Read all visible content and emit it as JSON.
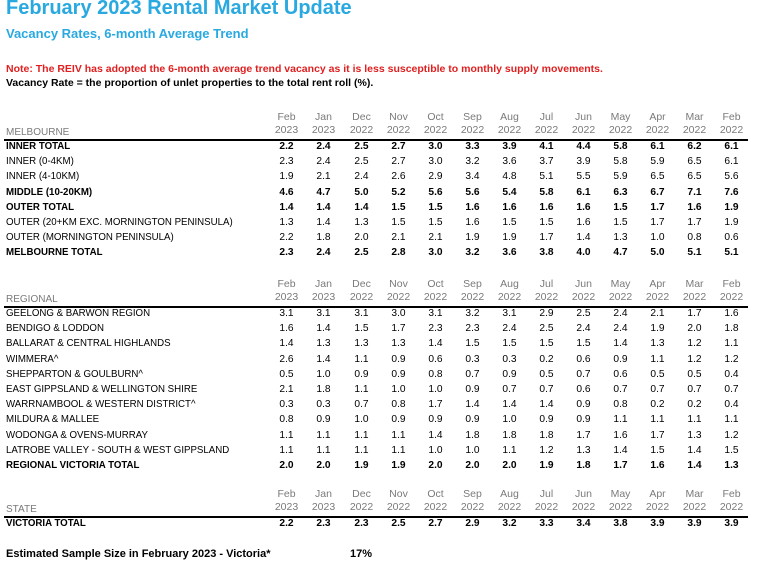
{
  "title": "February 2023 Rental Market Update",
  "subtitle": "Vacancy Rates, 6-month Average Trend",
  "note": "Note: The REIV has adopted the 6-month average trend vacancy as it is less susceptible to monthly supply movements.",
  "definition": "Vacancy Rate = the proportion of unlet properties to the total rent roll (%).",
  "months": [
    {
      "m": "Feb",
      "y": "2023"
    },
    {
      "m": "Jan",
      "y": "2023"
    },
    {
      "m": "Dec",
      "y": "2022"
    },
    {
      "m": "Nov",
      "y": "2022"
    },
    {
      "m": "Oct",
      "y": "2022"
    },
    {
      "m": "Sep",
      "y": "2022"
    },
    {
      "m": "Aug",
      "y": "2022"
    },
    {
      "m": "Jul",
      "y": "2022"
    },
    {
      "m": "Jun",
      "y": "2022"
    },
    {
      "m": "May",
      "y": "2022"
    },
    {
      "m": "Apr",
      "y": "2022"
    },
    {
      "m": "Mar",
      "y": "2022"
    },
    {
      "m": "Feb",
      "y": "2022"
    }
  ],
  "sections": [
    {
      "label": "MELBOURNE",
      "rows": [
        {
          "name": "INNER TOTAL",
          "bold": true,
          "values": [
            "2.2",
            "2.4",
            "2.5",
            "2.7",
            "3.0",
            "3.3",
            "3.9",
            "4.1",
            "4.4",
            "5.8",
            "6.1",
            "6.2",
            "6.1"
          ]
        },
        {
          "name": "INNER (0-4KM)",
          "bold": false,
          "values": [
            "2.3",
            "2.4",
            "2.5",
            "2.7",
            "3.0",
            "3.2",
            "3.6",
            "3.7",
            "3.9",
            "5.8",
            "5.9",
            "6.5",
            "6.1"
          ]
        },
        {
          "name": "INNER (4-10KM)",
          "bold": false,
          "values": [
            "1.9",
            "2.1",
            "2.4",
            "2.6",
            "2.9",
            "3.4",
            "4.8",
            "5.1",
            "5.5",
            "5.9",
            "6.5",
            "6.5",
            "5.6"
          ]
        },
        {
          "name": "MIDDLE (10-20KM)",
          "bold": true,
          "values": [
            "4.6",
            "4.7",
            "5.0",
            "5.2",
            "5.6",
            "5.6",
            "5.4",
            "5.8",
            "6.1",
            "6.3",
            "6.7",
            "7.1",
            "7.6"
          ]
        },
        {
          "name": "OUTER TOTAL",
          "bold": true,
          "values": [
            "1.4",
            "1.4",
            "1.4",
            "1.5",
            "1.5",
            "1.6",
            "1.6",
            "1.6",
            "1.6",
            "1.5",
            "1.7",
            "1.6",
            "1.9"
          ]
        },
        {
          "name": "OUTER (20+KM EXC. MORNINGTON PENINSULA)",
          "bold": false,
          "values": [
            "1.3",
            "1.4",
            "1.3",
            "1.5",
            "1.5",
            "1.6",
            "1.5",
            "1.5",
            "1.6",
            "1.5",
            "1.7",
            "1.7",
            "1.9"
          ]
        },
        {
          "name": "OUTER (MORNINGTON PENINSULA)",
          "bold": false,
          "values": [
            "2.2",
            "1.8",
            "2.0",
            "2.1",
            "2.1",
            "1.9",
            "1.9",
            "1.7",
            "1.4",
            "1.3",
            "1.0",
            "0.8",
            "0.6"
          ]
        },
        {
          "name": "MELBOURNE TOTAL",
          "bold": true,
          "values": [
            "2.3",
            "2.4",
            "2.5",
            "2.8",
            "3.0",
            "3.2",
            "3.6",
            "3.8",
            "4.0",
            "4.7",
            "5.0",
            "5.1",
            "5.1"
          ]
        }
      ]
    },
    {
      "label": "REGIONAL",
      "rows": [
        {
          "name": "GEELONG & BARWON REGION",
          "bold": false,
          "values": [
            "3.1",
            "3.1",
            "3.1",
            "3.0",
            "3.1",
            "3.2",
            "3.1",
            "2.9",
            "2.5",
            "2.4",
            "2.1",
            "1.7",
            "1.6"
          ]
        },
        {
          "name": "BENDIGO & LODDON",
          "bold": false,
          "values": [
            "1.6",
            "1.4",
            "1.5",
            "1.7",
            "2.3",
            "2.3",
            "2.4",
            "2.5",
            "2.4",
            "2.4",
            "1.9",
            "2.0",
            "1.8"
          ]
        },
        {
          "name": "BALLARAT & CENTRAL HIGHLANDS",
          "bold": false,
          "values": [
            "1.4",
            "1.3",
            "1.3",
            "1.3",
            "1.4",
            "1.5",
            "1.5",
            "1.5",
            "1.5",
            "1.4",
            "1.3",
            "1.2",
            "1.1"
          ]
        },
        {
          "name": "WIMMERA^",
          "bold": false,
          "values": [
            "2.6",
            "1.4",
            "1.1",
            "0.9",
            "0.6",
            "0.3",
            "0.3",
            "0.2",
            "0.6",
            "0.9",
            "1.1",
            "1.2",
            "1.2"
          ]
        },
        {
          "name": "SHEPPARTON & GOULBURN^",
          "bold": false,
          "values": [
            "0.5",
            "1.0",
            "0.9",
            "0.9",
            "0.8",
            "0.7",
            "0.9",
            "0.5",
            "0.7",
            "0.6",
            "0.5",
            "0.5",
            "0.4"
          ]
        },
        {
          "name": "EAST GIPPSLAND & WELLINGTON SHIRE",
          "bold": false,
          "values": [
            "2.1",
            "1.8",
            "1.1",
            "1.0",
            "1.0",
            "0.9",
            "0.7",
            "0.7",
            "0.6",
            "0.7",
            "0.7",
            "0.7",
            "0.7"
          ]
        },
        {
          "name": "WARRNAMBOOL & WESTERN DISTRICT^",
          "bold": false,
          "values": [
            "0.3",
            "0.3",
            "0.7",
            "0.8",
            "1.7",
            "1.4",
            "1.4",
            "1.4",
            "0.9",
            "0.8",
            "0.2",
            "0.2",
            "0.4"
          ]
        },
        {
          "name": "MILDURA & MALLEE",
          "bold": false,
          "values": [
            "0.8",
            "0.9",
            "1.0",
            "0.9",
            "0.9",
            "0.9",
            "1.0",
            "0.9",
            "0.9",
            "1.1",
            "1.1",
            "1.1",
            "1.1"
          ]
        },
        {
          "name": "WODONGA & OVENS-MURRAY",
          "bold": false,
          "values": [
            "1.1",
            "1.1",
            "1.1",
            "1.1",
            "1.4",
            "1.8",
            "1.8",
            "1.8",
            "1.7",
            "1.6",
            "1.7",
            "1.3",
            "1.2"
          ]
        },
        {
          "name": "LATROBE VALLEY - SOUTH & WEST GIPPSLAND",
          "bold": false,
          "values": [
            "1.1",
            "1.1",
            "1.1",
            "1.1",
            "1.0",
            "1.0",
            "1.1",
            "1.2",
            "1.3",
            "1.4",
            "1.5",
            "1.4",
            "1.5"
          ]
        },
        {
          "name": "REGIONAL VICTORIA TOTAL",
          "bold": true,
          "values": [
            "2.0",
            "2.0",
            "1.9",
            "1.9",
            "2.0",
            "2.0",
            "2.0",
            "1.9",
            "1.8",
            "1.7",
            "1.6",
            "1.4",
            "1.3"
          ]
        }
      ]
    },
    {
      "label": "STATE",
      "rows": [
        {
          "name": "VICTORIA TOTAL",
          "bold": true,
          "values": [
            "2.2",
            "2.3",
            "2.3",
            "2.5",
            "2.7",
            "2.9",
            "3.2",
            "3.3",
            "3.4",
            "3.8",
            "3.9",
            "3.9",
            "3.9"
          ]
        }
      ]
    }
  ],
  "sample_label": "Estimated Sample Size in February 2023 - Victoria*",
  "sample_value": "17%"
}
